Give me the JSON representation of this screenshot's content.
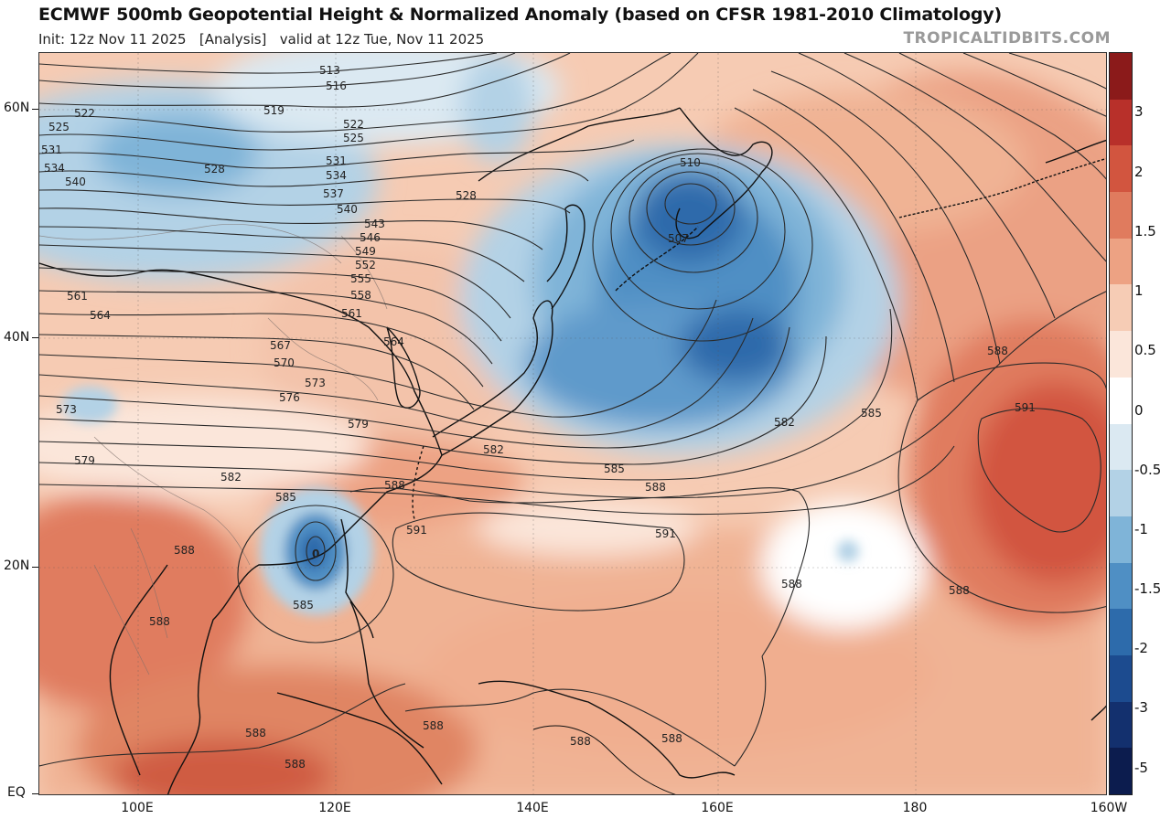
{
  "header": {
    "title": "ECMWF 500mb Geopotential Height & Normalized Anomaly (based on CFSR 1981-2010 Climatology)",
    "subtitle": "Init: 12z Nov 11 2025   [Analysis]   valid at 12z Tue, Nov 11 2025",
    "brand": "TROPICALTIDBITS.COM"
  },
  "axes": {
    "lat_labels": [
      "60N",
      "40N",
      "20N",
      "EQ"
    ],
    "lon_labels": [
      "100E",
      "120E",
      "140E",
      "160E",
      "180",
      "160W"
    ]
  },
  "colorbar": {
    "labels": [
      "3",
      "2",
      "1.5",
      "1",
      "0.5",
      "0",
      "-0.5",
      "-1",
      "-1.5",
      "-2",
      "-3",
      "-5"
    ],
    "colors": [
      "#8b1a1a",
      "#b8302a",
      "#d2553f",
      "#e07b5e",
      "#eda283",
      "#f6ccb5",
      "#fbe6da",
      "#ffffff",
      "#dbe9f2",
      "#b3d2e6",
      "#7fb4d8",
      "#4f8fc4",
      "#2d6bab",
      "#1c4b8f",
      "#13306e",
      "#0c1c4e"
    ]
  },
  "map": {
    "features": {
      "height_contours": "height-contour-lines",
      "anomaly_shading": "normalized-anomaly-fill",
      "coastlines": "coastline-lines",
      "borders": "country-borders"
    },
    "centers": {
      "low": "507",
      "typhoon": "0"
    },
    "contour_labels": [
      "513",
      "516",
      "519",
      "522",
      "525",
      "528",
      "531",
      "534",
      "537",
      "540",
      "543",
      "546",
      "549",
      "552",
      "555",
      "558",
      "561",
      "564",
      "567",
      "570",
      "573",
      "576",
      "579",
      "582",
      "585",
      "588",
      "591",
      "507",
      "510"
    ]
  }
}
